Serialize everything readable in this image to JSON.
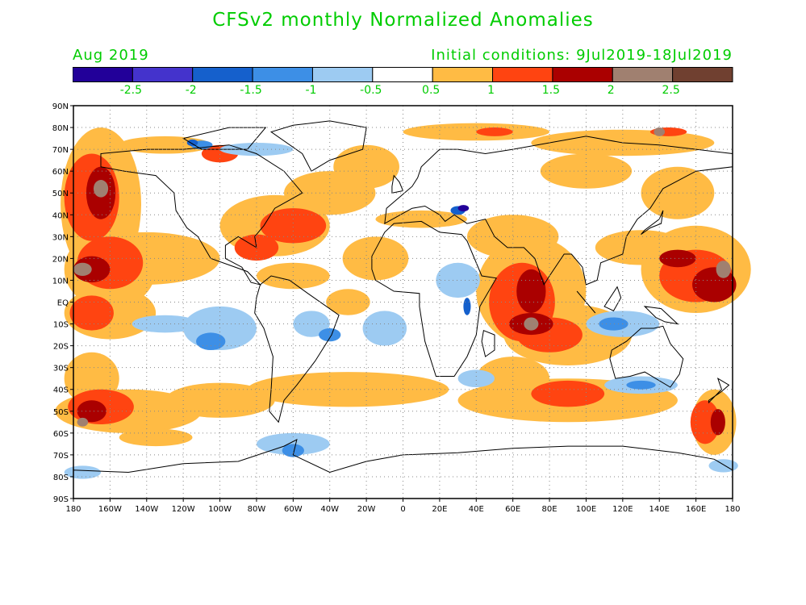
{
  "title": "CFSv2 monthly Normalized Anomalies",
  "month": "Aug 2019",
  "initial_conditions": "Initial conditions: 9Jul2019-18Jul2019",
  "text_color": "#00cc00",
  "colorbar": {
    "colors": [
      "#220099",
      "#4433cc",
      "#1560cc",
      "#3d8fe6",
      "#9dcbf2",
      "#ffffff",
      "#ffbb44",
      "#ff4411",
      "#aa0000",
      "#a08070",
      "#704030"
    ],
    "labels": [
      "-2.5",
      "-2",
      "-1.5",
      "-1",
      "-0.5",
      "0.5",
      "1",
      "1.5",
      "2",
      "2.5"
    ]
  },
  "map": {
    "lat_labels": [
      "90N",
      "80N",
      "70N",
      "60N",
      "50N",
      "40N",
      "30N",
      "20N",
      "10N",
      "EQ",
      "10S",
      "20S",
      "30S",
      "40S",
      "50S",
      "60S",
      "70S",
      "80S",
      "90S"
    ],
    "lon_labels": [
      "180",
      "160W",
      "140W",
      "120W",
      "100W",
      "80W",
      "60W",
      "40W",
      "20W",
      "0",
      "20E",
      "40E",
      "60E",
      "80E",
      "100E",
      "120E",
      "140E",
      "160E",
      "180"
    ],
    "grid": "dotted every 10°",
    "projection": "equirectangular, 180W–180E"
  }
}
